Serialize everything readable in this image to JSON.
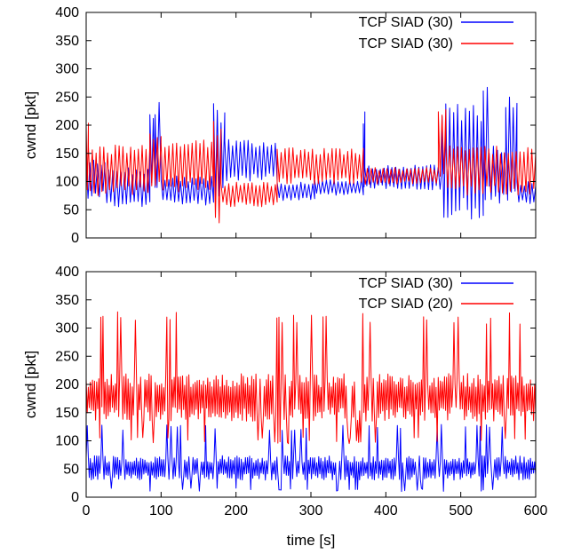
{
  "chart_data": [
    {
      "type": "line",
      "title": "",
      "xlabel": "",
      "ylabel": "cwnd [pkt]",
      "xlim": [
        0,
        600
      ],
      "ylim": [
        0,
        400
      ],
      "x_ticks": [],
      "y_ticks": [
        0,
        50,
        100,
        150,
        200,
        250,
        300,
        350,
        400
      ],
      "grid": false,
      "legend": "top-right",
      "series": [
        {
          "name": "TCP SIAD (30)",
          "color": "#0000ff",
          "segments": [
            {
              "x": [
                0,
                25
              ],
              "low": 70,
              "high": 140
            },
            {
              "x": [
                25,
                85
              ],
              "low": 55,
              "high": 125
            },
            {
              "x": [
                85,
                92
              ],
              "low": 70,
              "high": 240
            },
            {
              "x": [
                92,
                100
              ],
              "low": 80,
              "high": 250
            },
            {
              "x": [
                100,
                170
              ],
              "low": 58,
              "high": 110
            },
            {
              "x": [
                170,
                185
              ],
              "low": 60,
              "high": 240
            },
            {
              "x": [
                185,
                255
              ],
              "low": 100,
              "high": 175
            },
            {
              "x": [
                255,
                305
              ],
              "low": 65,
              "high": 100
            },
            {
              "x": [
                305,
                370
              ],
              "low": 75,
              "high": 105
            },
            {
              "x": [
                370,
                372
              ],
              "low": 90,
              "high": 225
            },
            {
              "x": [
                372,
                475
              ],
              "low": 85,
              "high": 130
            },
            {
              "x": [
                475,
                480
              ],
              "low": 30,
              "high": 235
            },
            {
              "x": [
                480,
                530
              ],
              "low": 30,
              "high": 240
            },
            {
              "x": [
                530,
                538
              ],
              "low": 60,
              "high": 275
            },
            {
              "x": [
                538,
                560
              ],
              "low": 60,
              "high": 165
            },
            {
              "x": [
                560,
                575
              ],
              "low": 60,
              "high": 260
            },
            {
              "x": [
                575,
                600
              ],
              "low": 60,
              "high": 100
            }
          ]
        },
        {
          "name": "TCP SIAD (30)",
          "color": "#ff0000",
          "segments": [
            {
              "x": [
                0,
                3
              ],
              "low": 80,
              "high": 210
            },
            {
              "x": [
                3,
                85
              ],
              "low": 75,
              "high": 165
            },
            {
              "x": [
                85,
                100
              ],
              "low": 85,
              "high": 190
            },
            {
              "x": [
                100,
                170
              ],
              "low": 80,
              "high": 175
            },
            {
              "x": [
                170,
                180
              ],
              "low": 20,
              "high": 210
            },
            {
              "x": [
                180,
                255
              ],
              "low": 55,
              "high": 100
            },
            {
              "x": [
                255,
                370
              ],
              "low": 95,
              "high": 160
            },
            {
              "x": [
                370,
                470
              ],
              "low": 95,
              "high": 125
            },
            {
              "x": [
                470,
                480
              ],
              "low": 85,
              "high": 235
            },
            {
              "x": [
                480,
                600
              ],
              "low": 75,
              "high": 165
            }
          ]
        }
      ]
    },
    {
      "type": "line",
      "title": "",
      "xlabel": "time [s]",
      "ylabel": "cwnd [pkt]",
      "xlim": [
        0,
        600
      ],
      "ylim": [
        0,
        400
      ],
      "x_ticks": [
        0,
        100,
        200,
        300,
        400,
        500,
        600
      ],
      "y_ticks": [
        0,
        50,
        100,
        150,
        200,
        250,
        300,
        350,
        400
      ],
      "grid": false,
      "legend": "top-right",
      "series": [
        {
          "name": "TCP SIAD (30)",
          "color": "#0000ff",
          "segments": [
            {
              "x": [
                0,
                600
              ],
              "low": 10,
              "high": 130
            }
          ]
        },
        {
          "name": "TCP SIAD (20)",
          "color": "#ff0000",
          "segments": [
            {
              "x": [
                0,
                600
              ],
              "low": 95,
              "high": 330
            }
          ]
        }
      ]
    }
  ]
}
